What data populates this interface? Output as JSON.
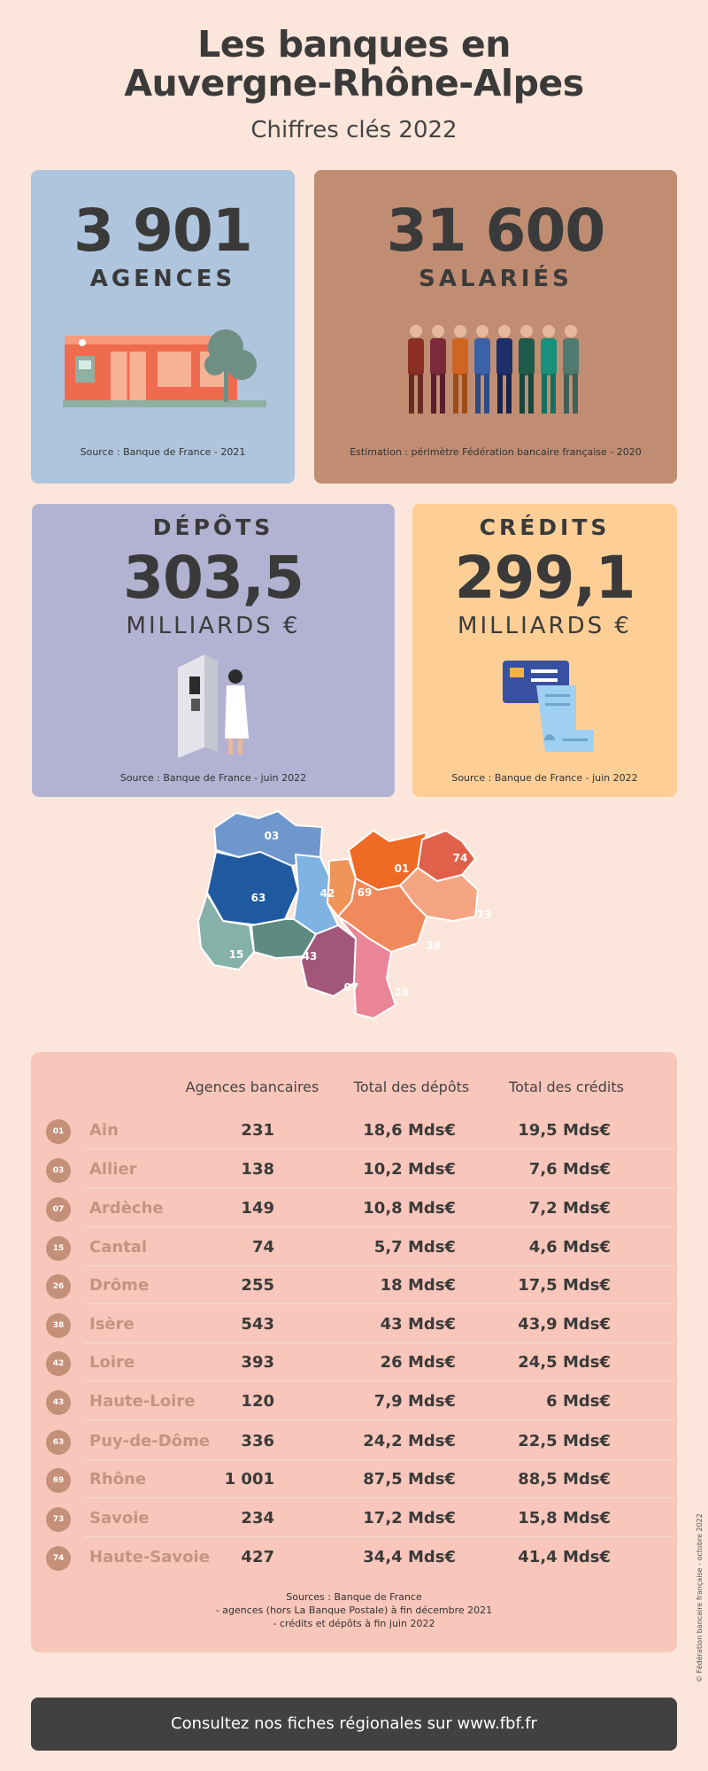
{
  "header": {
    "title_line1": "Les banques en",
    "title_line2": "Auvergne-Rhône-Alpes",
    "subtitle": "Chiffres clés 2022"
  },
  "cards": {
    "agences": {
      "number": "3 901",
      "label": "AGENCES",
      "source": "Source : Banque de France - 2021",
      "color": "#afc5de"
    },
    "salaries": {
      "number": "31 600",
      "label": "SALARIÉS",
      "source": "Estimation : périmètre Fédération bancaire française - 2020",
      "color": "#c08d73"
    },
    "depots": {
      "label": "DÉPÔTS",
      "number": "303,5",
      "unit": "MILLIARDS €",
      "source": "Source : Banque de France - juin 2022",
      "color": "#b3b2d3"
    },
    "credits": {
      "label": "CRÉDITS",
      "number": "299,1",
      "unit": "MILLIARDS €",
      "source": "Source : Banque de France - juin 2022",
      "color": "#fdcf97"
    }
  },
  "map": {
    "regions": [
      {
        "code": "03",
        "color": "#6f97cd"
      },
      {
        "code": "63",
        "color": "#1f5aa0"
      },
      {
        "code": "42",
        "color": "#7fb3e2"
      },
      {
        "code": "69",
        "color": "#f0955a"
      },
      {
        "code": "01",
        "color": "#ef6a25"
      },
      {
        "code": "74",
        "color": "#e06049"
      },
      {
        "code": "73",
        "color": "#f6a583"
      },
      {
        "code": "38",
        "color": "#f08a5d"
      },
      {
        "code": "15",
        "color": "#86b1a8"
      },
      {
        "code": "43",
        "color": "#5e8a7f"
      },
      {
        "code": "07",
        "color": "#a2577a"
      },
      {
        "code": "26",
        "color": "#ea8597"
      }
    ]
  },
  "table": {
    "headers": {
      "agences": "Agences bancaires",
      "depots": "Total des dépôts",
      "credits": "Total des crédits"
    },
    "rows": [
      {
        "code": "01",
        "name": "Ain",
        "agences": "231",
        "depots": "18,6 Mds€",
        "credits": "19,5 Mds€"
      },
      {
        "code": "03",
        "name": "Allier",
        "agences": "138",
        "depots": "10,2 Mds€",
        "credits": "7,6 Mds€"
      },
      {
        "code": "07",
        "name": "Ardèche",
        "agences": "149",
        "depots": "10,8 Mds€",
        "credits": "7,2 Mds€"
      },
      {
        "code": "15",
        "name": "Cantal",
        "agences": "74",
        "depots": "5,7 Mds€",
        "credits": "4,6 Mds€"
      },
      {
        "code": "26",
        "name": "Drôme",
        "agences": "255",
        "depots": "18 Mds€",
        "credits": "17,5 Mds€"
      },
      {
        "code": "38",
        "name": "Isère",
        "agences": "543",
        "depots": "43 Mds€",
        "credits": "43,9 Mds€"
      },
      {
        "code": "42",
        "name": "Loire",
        "agences": "393",
        "depots": "26 Mds€",
        "credits": "24,5 Mds€"
      },
      {
        "code": "43",
        "name": "Haute-Loire",
        "agences": "120",
        "depots": "7,9 Mds€",
        "credits": "6 Mds€"
      },
      {
        "code": "63",
        "name": "Puy-de-Dôme",
        "agences": "336",
        "depots": "24,2 Mds€",
        "credits": "22,5 Mds€"
      },
      {
        "code": "69",
        "name": "Rhône",
        "agences": "1 001",
        "depots": "87,5 Mds€",
        "credits": "88,5 Mds€"
      },
      {
        "code": "73",
        "name": "Savoie",
        "agences": "234",
        "depots": "17,2 Mds€",
        "credits": "15,8 Mds€"
      },
      {
        "code": "74",
        "name": "Haute-Savoie",
        "agences": "427",
        "depots": "34,4 Mds€",
        "credits": "41,4 Mds€"
      }
    ],
    "sources": [
      "Sources : Banque de France",
      "- agences (hors La Banque Postale) à fin décembre 2021",
      "- crédits et dépôts à fin juin 2022"
    ]
  },
  "footer": {
    "cta": "Consultez nos fiches régionales sur www.fbf.fr",
    "copyright": "© Fédération bancaire française - octobre 2022"
  }
}
